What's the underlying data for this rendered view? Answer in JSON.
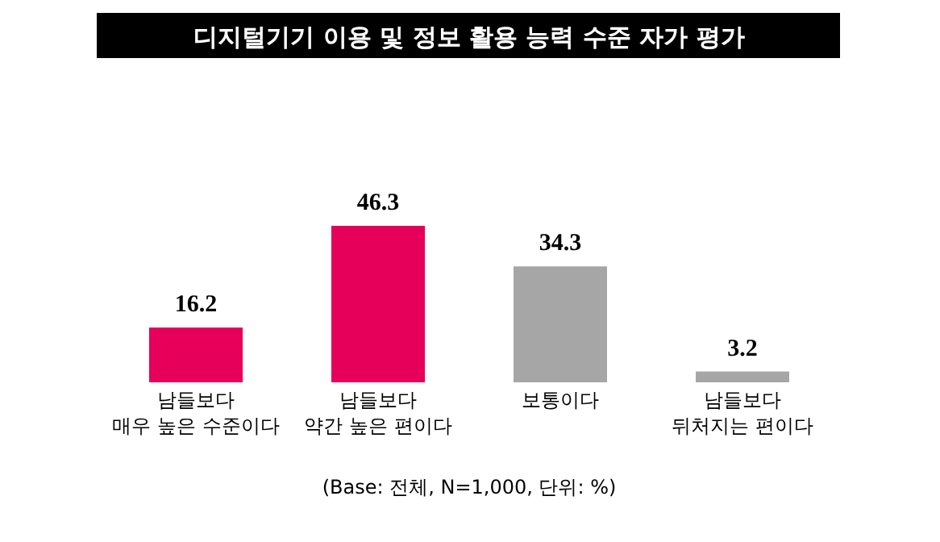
{
  "chart_data": {
    "type": "bar",
    "title": "디지털기기 이용 및 정보 활용 능력 수준 자가 평가",
    "categories": [
      "남들보다\n매우 높은 수준이다",
      "남들보다\n약간 높은 편이다",
      "보통이다",
      "남들보다\n뒤처지는 편이다"
    ],
    "values": [
      16.2,
      46.3,
      34.3,
      3.2
    ],
    "colors": [
      "#e6005a",
      "#e6005a",
      "#a6a6a6",
      "#a6a6a6"
    ],
    "data_labels": true,
    "annotations": [
      "(Base: 전체, N=1,000, 단위: %)"
    ]
  }
}
